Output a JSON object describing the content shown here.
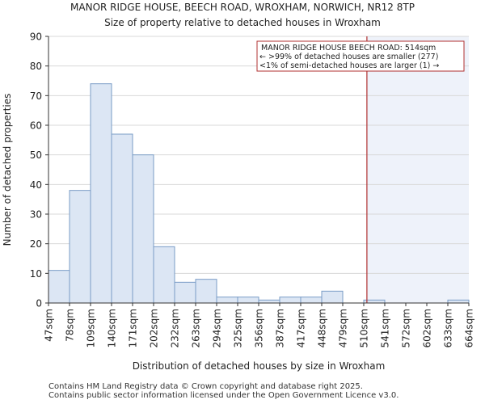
{
  "chart_data": {
    "type": "bar",
    "title_line1": "MANOR RIDGE HOUSE, BEECH ROAD, WROXHAM, NORWICH, NR12 8TP",
    "title_line2": "Size of property relative to detached houses in Wroxham",
    "xlabel": "Distribution of detached houses by size in Wroxham",
    "ylabel": "Number of detached properties",
    "ylim": [
      0,
      90
    ],
    "yticks": [
      0,
      10,
      20,
      30,
      40,
      50,
      60,
      70,
      80,
      90
    ],
    "categories": [
      "47sqm",
      "78sqm",
      "109sqm",
      "140sqm",
      "171sqm",
      "202sqm",
      "232sqm",
      "263sqm",
      "294sqm",
      "325sqm",
      "356sqm",
      "387sqm",
      "417sqm",
      "448sqm",
      "479sqm",
      "510sqm",
      "541sqm",
      "572sqm",
      "602sqm",
      "633sqm",
      "664sqm"
    ],
    "bin_values": [
      11,
      38,
      74,
      57,
      50,
      19,
      7,
      8,
      2,
      2,
      1,
      2,
      2,
      4,
      0,
      1,
      0,
      0,
      0,
      1
    ],
    "property_marker": {
      "label": "MANOR RIDGE HOUSE BEECH ROAD: 514sqm",
      "bin_position": 15.15,
      "note_smaller": "← >99% of detached houses are smaller (277)",
      "note_larger": "<1% of semi-detached houses are larger (1) →"
    },
    "colors": {
      "bar_fill": "#dce6f4",
      "bar_stroke": "#7a9cc6",
      "highlight_fill": "#eef2fa",
      "marker_line": "#b03030",
      "axis": "#333333"
    }
  },
  "footer": {
    "line1": "Contains HM Land Registry data © Crown copyright and database right 2025.",
    "line2": "Contains public sector information licensed under the Open Government Licence v3.0."
  }
}
